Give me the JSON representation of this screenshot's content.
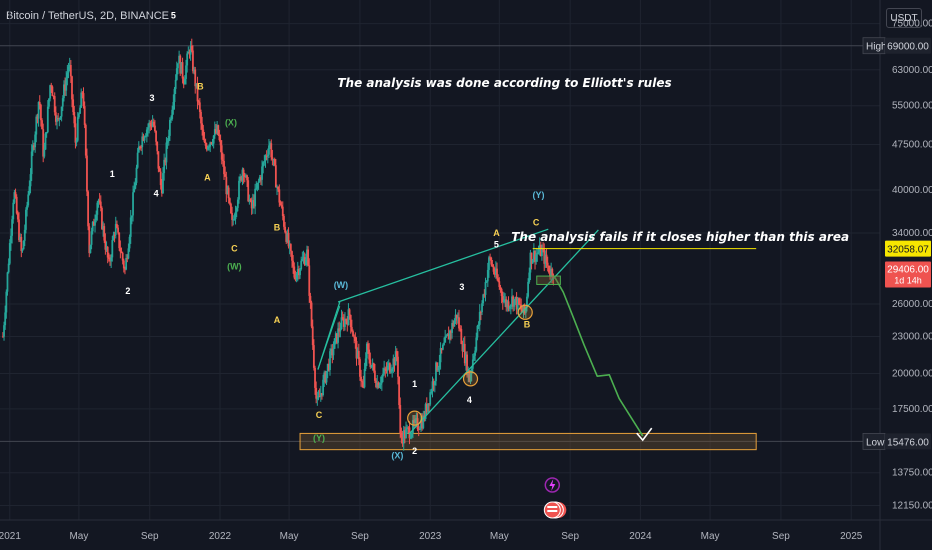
{
  "header": {
    "title": "Bitcoin / TetherUS, 2D, BINANCE",
    "currency": "USDT"
  },
  "colors": {
    "bg": "#131722",
    "up": "#26a69a",
    "down": "#ef5350",
    "teal_line": "#26bfa0",
    "yellow": "#f7e600",
    "green_path": "#4caf50",
    "wave_white": "#ffffff",
    "wave_yellow": "#f7d154",
    "wave_green": "#4caf50",
    "wave_cyan": "#5ab9d8",
    "circle": "#e8a13a"
  },
  "chart_data": {
    "type": "candlestick",
    "xlabel": "",
    "ylabel": "",
    "x_ticks": [
      "2021",
      "May",
      "Sep",
      "2022",
      "May",
      "Sep",
      "2023",
      "May",
      "Sep",
      "2024",
      "May",
      "Sep",
      "2025"
    ],
    "y_ticks": [
      "75000.00",
      "63000.00",
      "55000.00",
      "47500.00",
      "40000.00",
      "34000.00",
      "26000.00",
      "23000.00",
      "20000.00",
      "17500.00",
      "13750.00",
      "12150.00"
    ],
    "ylim": [
      11500,
      82000
    ],
    "y_scale": "log",
    "xlim": [
      "2020-12-15",
      "2025-02-20"
    ],
    "price_labels": {
      "high_label": "High",
      "high_value": "69000.00",
      "current_value": "32058.07",
      "last_value": "29406.00",
      "countdown": "1d 14h",
      "low_label": "Low",
      "low_value": "15476.00"
    },
    "price_path": [
      [
        "2020-12-20",
        23000
      ],
      [
        "2021-01-08",
        40000
      ],
      [
        "2021-01-22",
        31000
      ],
      [
        "2021-02-08",
        45000
      ],
      [
        "2021-02-21",
        57000
      ],
      [
        "2021-03-01",
        45000
      ],
      [
        "2021-03-13",
        61000
      ],
      [
        "2021-03-25",
        51000
      ],
      [
        "2021-04-14",
        64800
      ],
      [
        "2021-04-25",
        48000
      ],
      [
        "2021-05-08",
        59000
      ],
      [
        "2021-05-19",
        32000
      ],
      [
        "2021-06-03",
        39000
      ],
      [
        "2021-06-22",
        30000
      ],
      [
        "2021-07-03",
        35000
      ],
      [
        "2021-07-20",
        29500
      ],
      [
        "2021-08-14",
        47500
      ],
      [
        "2021-08-23",
        50000
      ],
      [
        "2021-09-07",
        52000
      ],
      [
        "2021-09-21",
        40000
      ],
      [
        "2021-10-20",
        66000
      ],
      [
        "2021-10-30",
        61000
      ],
      [
        "2021-11-10",
        69000
      ],
      [
        "2021-11-26",
        54000
      ],
      [
        "2021-12-04",
        47000
      ],
      [
        "2021-12-28",
        50000
      ],
      [
        "2022-01-22",
        35000
      ],
      [
        "2022-02-10",
        44000
      ],
      [
        "2022-02-24",
        37000
      ],
      [
        "2022-03-28",
        48000
      ],
      [
        "2022-04-12",
        39500
      ],
      [
        "2022-05-10",
        29000
      ],
      [
        "2022-06-01",
        31500
      ],
      [
        "2022-06-18",
        17600
      ],
      [
        "2022-07-10",
        21000
      ],
      [
        "2022-07-29",
        24000
      ],
      [
        "2022-08-14",
        25000
      ],
      [
        "2022-09-07",
        18800
      ],
      [
        "2022-09-12",
        22000
      ],
      [
        "2022-10-01",
        19300
      ],
      [
        "2022-11-05",
        21400
      ],
      [
        "2022-11-10",
        15700
      ],
      [
        "2022-12-20",
        16800
      ],
      [
        "2023-01-14",
        20800
      ],
      [
        "2023-02-16",
        25000
      ],
      [
        "2023-03-10",
        19600
      ],
      [
        "2023-04-14",
        30900
      ],
      [
        "2023-05-12",
        26000
      ],
      [
        "2023-05-25",
        26500
      ],
      [
        "2023-06-15",
        25000
      ],
      [
        "2023-06-23",
        31000
      ],
      [
        "2023-07-13",
        31800
      ],
      [
        "2023-07-28",
        29400
      ],
      [
        "2023-08-03",
        29406
      ]
    ],
    "annotations": [
      {
        "text": "The analysis was done according to Elliott's rules",
        "x": "2023-05-10",
        "y": 59000
      },
      {
        "text": "The analysis fails if it closes higher than this area",
        "x": "2024-03-10",
        "y": 33000
      }
    ],
    "wave_labels": [
      {
        "text": "5",
        "date": "2021-10-12",
        "price": 76500,
        "color": "white"
      },
      {
        "text": "3",
        "date": "2021-09-05",
        "price": 56000,
        "color": "white"
      },
      {
        "text": "B",
        "date": "2021-11-28",
        "price": 58500,
        "color": "yellow"
      },
      {
        "text": "(X)",
        "date": "2022-01-20",
        "price": 51000,
        "color": "green"
      },
      {
        "text": "1",
        "date": "2021-06-28",
        "price": 42000,
        "color": "white"
      },
      {
        "text": "4",
        "date": "2021-09-12",
        "price": 39000,
        "color": "white"
      },
      {
        "text": "A",
        "date": "2021-12-10",
        "price": 41500,
        "color": "yellow"
      },
      {
        "text": "2",
        "date": "2021-07-25",
        "price": 27000,
        "color": "white"
      },
      {
        "text": "C",
        "date": "2022-01-26",
        "price": 31700,
        "color": "yellow"
      },
      {
        "text": "(W)",
        "date": "2022-01-26",
        "price": 29600,
        "color": "green"
      },
      {
        "text": "B",
        "date": "2022-04-10",
        "price": 34300,
        "color": "yellow"
      },
      {
        "text": "A",
        "date": "2022-04-10",
        "price": 24200,
        "color": "yellow"
      },
      {
        "text": "(W)",
        "date": "2022-07-30",
        "price": 27600,
        "color": "cyan"
      },
      {
        "text": "C",
        "date": "2022-06-22",
        "price": 16900,
        "color": "yellow"
      },
      {
        "text": "(Y)",
        "date": "2022-06-22",
        "price": 15500,
        "color": "green"
      },
      {
        "text": "(X)",
        "date": "2022-11-05",
        "price": 14500,
        "color": "cyan"
      },
      {
        "text": "2",
        "date": "2022-12-05",
        "price": 14750,
        "color": "white"
      },
      {
        "text": "1",
        "date": "2022-12-05",
        "price": 19000,
        "color": "white"
      },
      {
        "text": "3",
        "date": "2023-02-25",
        "price": 27400,
        "color": "white"
      },
      {
        "text": "4",
        "date": "2023-03-10",
        "price": 17900,
        "color": "white"
      },
      {
        "text": "A",
        "date": "2023-04-26",
        "price": 33600,
        "color": "yellow"
      },
      {
        "text": "5",
        "date": "2023-04-26",
        "price": 32200,
        "color": "white"
      },
      {
        "text": "B",
        "date": "2023-06-18",
        "price": 23800,
        "color": "yellow"
      },
      {
        "text": "(Y)",
        "date": "2023-07-08",
        "price": 38800,
        "color": "cyan"
      },
      {
        "text": "C",
        "date": "2023-07-04",
        "price": 35000,
        "color": "yellow"
      }
    ]
  }
}
